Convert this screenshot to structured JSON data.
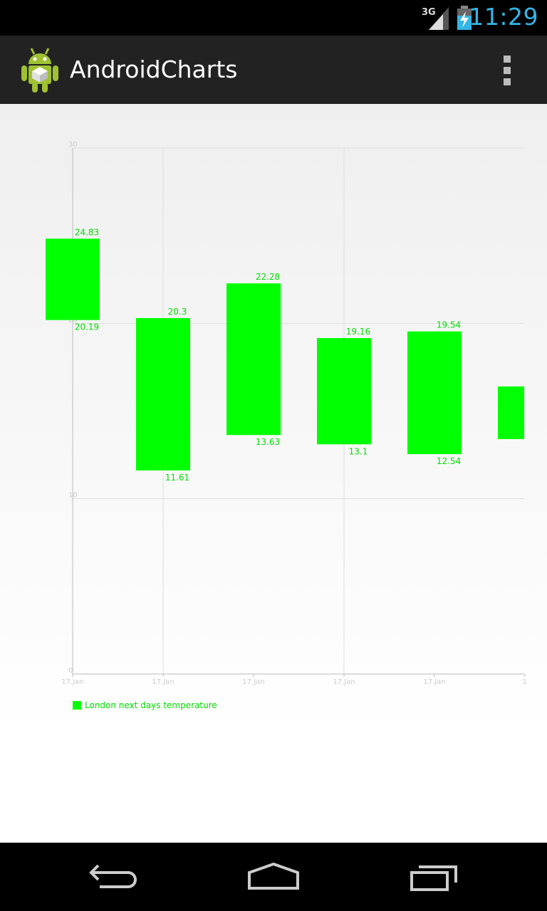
{
  "status_bar": {
    "time": "11:29",
    "network": "3G",
    "icons": [
      "signal-3g-icon",
      "battery-charging-icon"
    ]
  },
  "action_bar": {
    "title": "AndroidCharts",
    "icons": [
      "android-app-icon",
      "overflow-menu-icon"
    ]
  },
  "nav_bar": {
    "icons": [
      "back-icon",
      "home-icon",
      "recent-apps-icon"
    ]
  },
  "colors": {
    "bar": "#00ff00",
    "label": "#00dd00",
    "axis": "#bbbbbb",
    "grid": "#dddddd",
    "status_time": "#33b5e5"
  },
  "chart_data": {
    "type": "range-bar",
    "categories": [
      "17.Jan",
      "17.Jan",
      "17.Jan",
      "17.Jan",
      "17.Jan",
      "1"
    ],
    "series": [
      {
        "name": "London next days temperature",
        "low": [
          20.19,
          11.61,
          13.63,
          13.1,
          12.54,
          13.4
        ],
        "high": [
          24.83,
          20.3,
          22.28,
          19.16,
          19.54,
          16.4
        ],
        "low_labels": [
          "20.19",
          "11.61",
          "13.63",
          "13.1",
          "12.54",
          ""
        ],
        "high_labels": [
          "24.83",
          "20.3",
          "22.28",
          "19.16",
          "19.54",
          ""
        ]
      }
    ],
    "y_ticks": [
      "0",
      "10",
      "20",
      "30"
    ],
    "ylim": [
      0,
      30
    ],
    "grid": true,
    "legend": "bottom-left",
    "title": "",
    "xlabel": "",
    "ylabel": ""
  }
}
